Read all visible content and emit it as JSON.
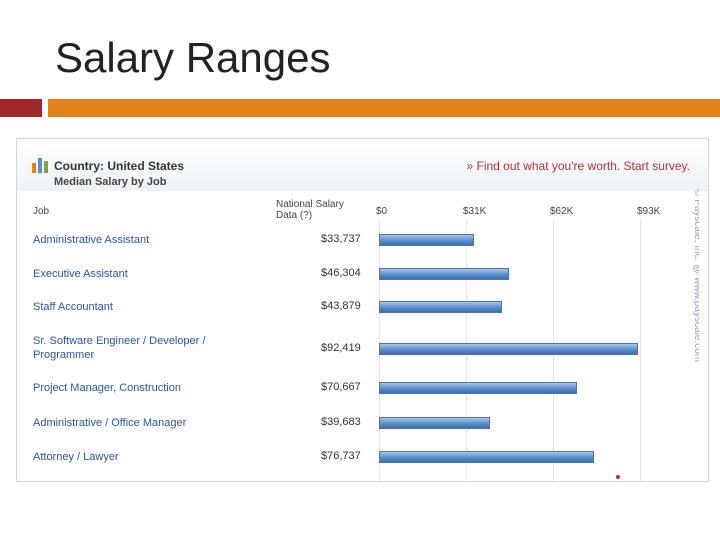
{
  "slide": {
    "title": "Salary Ranges"
  },
  "widget": {
    "country": "Country: United States",
    "subtitle": "Median Salary by Job",
    "survey_link": "» Find out what you're worth. Start survey.",
    "col_job": "Job",
    "col_national": "National Salary Data (?)",
    "watermark": "© Payscale, Inc. @ www.payscale.com"
  },
  "chart_data": {
    "type": "bar",
    "orientation": "horizontal",
    "categories": [
      "Administrative Assistant",
      "Executive Assistant",
      "Staff Accountant",
      "Sr. Software Engineer / Developer / Programmer",
      "Project Manager, Construction",
      "Administrative / Office Manager",
      "Attorney / Lawyer"
    ],
    "values": [
      33737,
      46304,
      43879,
      92419,
      70667,
      39683,
      76737
    ],
    "value_labels": [
      "$33,737",
      "$46,304",
      "$43,879",
      "$92,419",
      "$70,667",
      "$39,683",
      "$76,737"
    ],
    "ticks": [
      "$0",
      "$31K",
      "$62K",
      "$93K"
    ],
    "tick_values": [
      0,
      31000,
      62000,
      93000
    ],
    "xlim": [
      0,
      93000
    ],
    "bar_color": "#5d8dcb",
    "grid": true
  }
}
